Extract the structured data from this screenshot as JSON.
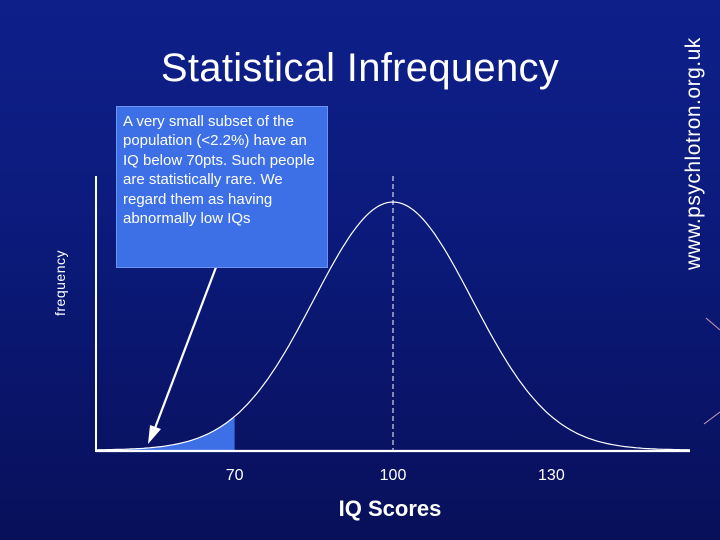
{
  "watermark": "www.psychlotron.org.uk",
  "slide_title": "Statistical Infrequency",
  "callout_text": "A very small subset of the population (<2.2%) have an IQ below 70pts. Such people are statistically rare.  We regard them as having abnormally low IQs",
  "colors": {
    "background": "#0b1a7a",
    "curve": "#ffffff",
    "shaded_tail": "#3d6fe6",
    "callout_fill": "#3d6fe6"
  },
  "chart_data": {
    "type": "area",
    "distribution": "normal",
    "mean": 100,
    "sd": 15,
    "xlabel": "IQ Scores",
    "ylabel": "frequency",
    "x_ticks": [
      "70",
      "100",
      "130"
    ],
    "shaded_region": {
      "below": 70
    },
    "mean_marker": 100,
    "grid": false
  }
}
